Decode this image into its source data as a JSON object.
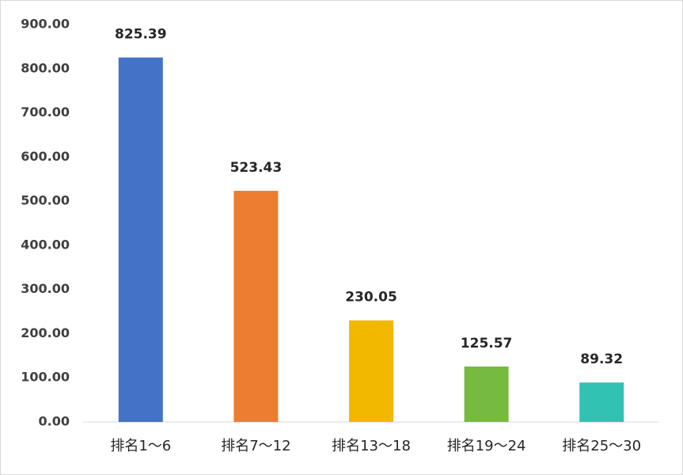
{
  "chart_data": {
    "type": "bar",
    "categories": [
      "排名1～6",
      "排名7～12",
      "排名13～18",
      "排名19～24",
      "排名25～30"
    ],
    "values": [
      825.39,
      523.43,
      230.05,
      125.57,
      89.32
    ],
    "colors": [
      "#4472c4",
      "#ed7d31",
      "#f2b800",
      "#76bb40",
      "#32c2b3"
    ],
    "ylim": [
      0,
      900
    ],
    "yticks": [
      {
        "value": 0,
        "label": "0.00"
      },
      {
        "value": 100,
        "label": "100.00"
      },
      {
        "value": 200,
        "label": "200.00"
      },
      {
        "value": 300,
        "label": "300.00"
      },
      {
        "value": 400,
        "label": "400.00"
      },
      {
        "value": 500,
        "label": "500.00"
      },
      {
        "value": 600,
        "label": "600.00"
      },
      {
        "value": 700,
        "label": "700.00"
      },
      {
        "value": 800,
        "label": "800.00"
      },
      {
        "value": 900,
        "label": "900.00"
      }
    ],
    "grid": false
  }
}
